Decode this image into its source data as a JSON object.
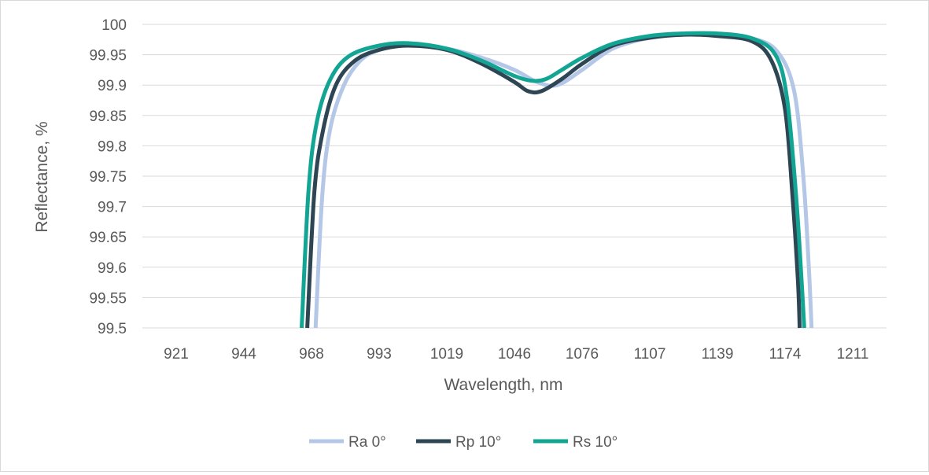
{
  "chart_data": {
    "type": "line",
    "title": "",
    "xlabel": "Wavelength, nm",
    "ylabel": "Reflectance, %",
    "ylim": [
      99.5,
      100
    ],
    "yticks": [
      "99.5",
      "99.55",
      "99.6",
      "99.65",
      "99.7",
      "99.75",
      "99.8",
      "99.85",
      "99.9",
      "99.95",
      "100"
    ],
    "xticks": [
      "921",
      "944",
      "968",
      "993",
      "1019",
      "1046",
      "1076",
      "1107",
      "1139",
      "1174",
      "1211"
    ],
    "grid": "horizontal",
    "legend_position": "bottom",
    "series": [
      {
        "name": "Ra 0°",
        "color": "#b4c7e7",
        "points": [
          [
            969.5,
            99.5
          ],
          [
            972,
            99.72
          ],
          [
            975,
            99.83
          ],
          [
            980,
            99.9
          ],
          [
            986,
            99.94
          ],
          [
            993,
            99.958
          ],
          [
            1004,
            99.966
          ],
          [
            1019,
            99.96
          ],
          [
            1033,
            99.945
          ],
          [
            1046,
            99.925
          ],
          [
            1056,
            99.905
          ],
          [
            1065,
            99.9
          ],
          [
            1076,
            99.925
          ],
          [
            1090,
            99.96
          ],
          [
            1107,
            99.978
          ],
          [
            1123,
            99.983
          ],
          [
            1139,
            99.982
          ],
          [
            1157,
            99.977
          ],
          [
            1170,
            99.955
          ],
          [
            1179,
            99.89
          ],
          [
            1184,
            99.75
          ],
          [
            1187,
            99.6
          ],
          [
            1188.5,
            99.5
          ]
        ]
      },
      {
        "name": "Rp 10°",
        "color": "#2e4553",
        "points": [
          [
            966.5,
            99.5
          ],
          [
            969,
            99.72
          ],
          [
            972,
            99.82
          ],
          [
            977,
            99.9
          ],
          [
            984,
            99.94
          ],
          [
            993,
            99.958
          ],
          [
            1004,
            99.965
          ],
          [
            1019,
            99.958
          ],
          [
            1033,
            99.935
          ],
          [
            1046,
            99.905
          ],
          [
            1052,
            99.89
          ],
          [
            1058,
            99.89
          ],
          [
            1067,
            99.91
          ],
          [
            1076,
            99.935
          ],
          [
            1090,
            99.965
          ],
          [
            1107,
            99.978
          ],
          [
            1123,
            99.983
          ],
          [
            1139,
            99.981
          ],
          [
            1157,
            99.972
          ],
          [
            1167,
            99.94
          ],
          [
            1174,
            99.86
          ],
          [
            1178,
            99.72
          ],
          [
            1181,
            99.58
          ],
          [
            1182,
            99.5
          ]
        ]
      },
      {
        "name": "Rs 10°",
        "color": "#13a594",
        "points": [
          [
            964.5,
            99.5
          ],
          [
            967,
            99.73
          ],
          [
            970,
            99.84
          ],
          [
            975,
            99.91
          ],
          [
            982,
            99.948
          ],
          [
            993,
            99.965
          ],
          [
            1004,
            99.969
          ],
          [
            1019,
            99.96
          ],
          [
            1033,
            99.94
          ],
          [
            1046,
            99.915
          ],
          [
            1054,
            99.907
          ],
          [
            1060,
            99.91
          ],
          [
            1067,
            99.925
          ],
          [
            1076,
            99.945
          ],
          [
            1090,
            99.968
          ],
          [
            1107,
            99.981
          ],
          [
            1123,
            99.985
          ],
          [
            1139,
            99.985
          ],
          [
            1157,
            99.977
          ],
          [
            1169,
            99.95
          ],
          [
            1175,
            99.88
          ],
          [
            1180,
            99.72
          ],
          [
            1183,
            99.58
          ],
          [
            1184.5,
            99.5
          ]
        ]
      }
    ]
  }
}
